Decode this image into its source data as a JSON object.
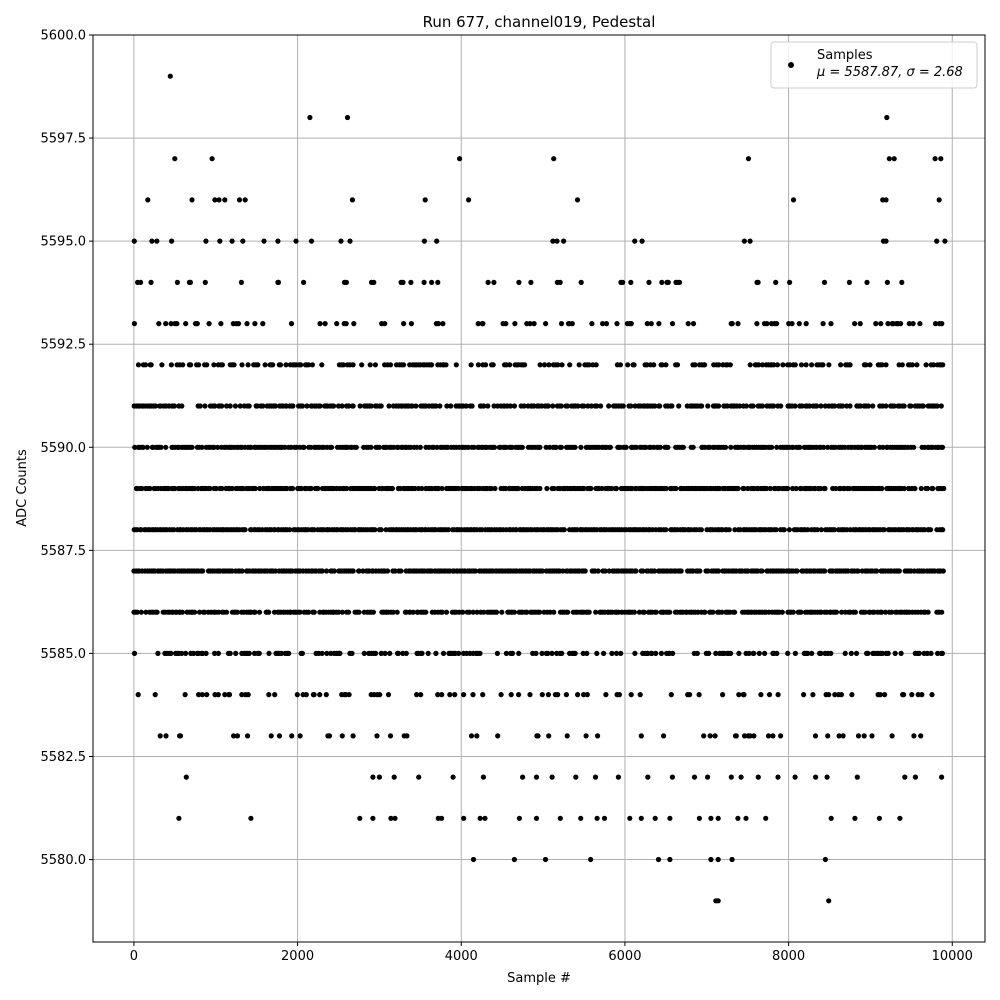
{
  "chart_data": {
    "type": "scatter",
    "title": "Run 677, channel019, Pedestal",
    "xlabel": "Sample #",
    "ylabel": "ADC Counts",
    "xlim": [
      -500,
      10400
    ],
    "ylim": [
      5578,
      5600
    ],
    "x_ticks": [
      0,
      2000,
      4000,
      6000,
      8000,
      10000
    ],
    "x_tick_labels": [
      "0",
      "2000",
      "4000",
      "6000",
      "8000",
      "10000"
    ],
    "y_ticks": [
      5580.0,
      5582.5,
      5585.0,
      5587.5,
      5590.0,
      5592.5,
      5595.0,
      5597.5,
      5600.0
    ],
    "y_tick_labels": [
      "5580.0",
      "5582.5",
      "5585.0",
      "5587.5",
      "5590.0",
      "5592.5",
      "5595.0",
      "5597.5",
      "5600.0"
    ],
    "grid": true,
    "legend": {
      "position": "top-right",
      "entry_label": "Samples",
      "stats_text": "μ = 5587.87, σ = 2.68"
    },
    "series": [
      {
        "name": "Samples",
        "color": "#000000",
        "points": [
          [
            444,
            5599
          ],
          [
            500,
            5597
          ],
          [
            955,
            5597
          ],
          [
            2150,
            5598
          ],
          [
            2610,
            5598
          ],
          [
            3980,
            5597
          ],
          [
            5130,
            5597
          ],
          [
            7510,
            5597
          ],
          [
            9200,
            5598
          ],
          [
            9230,
            5597
          ],
          [
            9290,
            5597
          ],
          [
            9790,
            5597
          ],
          [
            9860,
            5597
          ],
          [
            170,
            5596
          ],
          [
            710,
            5596
          ],
          [
            990,
            5596
          ],
          [
            1040,
            5596
          ],
          [
            1110,
            5596
          ],
          [
            1290,
            5596
          ],
          [
            1360,
            5596
          ],
          [
            2670,
            5596
          ],
          [
            3560,
            5596
          ],
          [
            4090,
            5596
          ],
          [
            5420,
            5596
          ],
          [
            8060,
            5596
          ],
          [
            9150,
            5596
          ],
          [
            9190,
            5596
          ],
          [
            9840,
            5596
          ],
          [
            5,
            5595
          ],
          [
            220,
            5595
          ],
          [
            280,
            5595
          ],
          [
            460,
            5595
          ],
          [
            880,
            5595
          ],
          [
            1050,
            5595
          ],
          [
            1200,
            5595
          ],
          [
            1330,
            5595
          ],
          [
            1590,
            5595
          ],
          [
            1760,
            5595
          ],
          [
            1980,
            5595
          ],
          [
            2170,
            5595
          ],
          [
            2530,
            5595
          ],
          [
            2640,
            5595
          ],
          [
            3550,
            5595
          ],
          [
            3700,
            5595
          ],
          [
            5120,
            5595
          ],
          [
            5170,
            5595
          ],
          [
            5250,
            5595
          ],
          [
            6120,
            5595
          ],
          [
            6210,
            5595
          ],
          [
            7460,
            5595
          ],
          [
            7530,
            5595
          ],
          [
            9160,
            5595
          ],
          [
            9190,
            5595
          ],
          [
            9810,
            5595
          ],
          [
            9910,
            5595
          ],
          [
            550,
            5581
          ],
          [
            1430,
            5581
          ],
          [
            2760,
            5581
          ],
          [
            2920,
            5581
          ],
          [
            3140,
            5581
          ],
          [
            3190,
            5581
          ],
          [
            3720,
            5581
          ],
          [
            3760,
            5581
          ],
          [
            4030,
            5581
          ],
          [
            4230,
            5581
          ],
          [
            4290,
            5581
          ],
          [
            4710,
            5581
          ],
          [
            4920,
            5581
          ],
          [
            5210,
            5581
          ],
          [
            5460,
            5581
          ],
          [
            5660,
            5581
          ],
          [
            5750,
            5581
          ],
          [
            6060,
            5581
          ],
          [
            6200,
            5581
          ],
          [
            6370,
            5581
          ],
          [
            6550,
            5581
          ],
          [
            6910,
            5581
          ],
          [
            7050,
            5581
          ],
          [
            7140,
            5581
          ],
          [
            7380,
            5581
          ],
          [
            7480,
            5581
          ],
          [
            7720,
            5581
          ],
          [
            8520,
            5581
          ],
          [
            8810,
            5581
          ],
          [
            9110,
            5581
          ],
          [
            9360,
            5581
          ],
          [
            640,
            5582
          ],
          [
            2920,
            5582
          ],
          [
            3000,
            5582
          ],
          [
            3180,
            5582
          ],
          [
            3480,
            5582
          ],
          [
            3900,
            5582
          ],
          [
            4270,
            5582
          ],
          [
            4750,
            5582
          ],
          [
            4920,
            5582
          ],
          [
            5110,
            5582
          ],
          [
            5400,
            5582
          ],
          [
            5640,
            5582
          ],
          [
            5920,
            5582
          ],
          [
            6280,
            5582
          ],
          [
            6580,
            5582
          ],
          [
            6850,
            5582
          ],
          [
            7010,
            5582
          ],
          [
            7300,
            5582
          ],
          [
            7420,
            5582
          ],
          [
            7630,
            5582
          ],
          [
            7870,
            5582
          ],
          [
            8080,
            5582
          ],
          [
            8330,
            5582
          ],
          [
            8470,
            5582
          ],
          [
            8840,
            5582
          ],
          [
            9420,
            5582
          ],
          [
            9550,
            5582
          ],
          [
            9870,
            5582
          ],
          [
            4150,
            5580
          ],
          [
            4650,
            5580
          ],
          [
            5030,
            5580
          ],
          [
            5580,
            5580
          ],
          [
            6410,
            5580
          ],
          [
            6550,
            5580
          ],
          [
            7050,
            5580
          ],
          [
            7140,
            5580
          ],
          [
            7310,
            5580
          ],
          [
            8450,
            5580
          ],
          [
            7110,
            5579
          ],
          [
            7140,
            5579
          ],
          [
            8490,
            5579
          ]
        ],
        "band_levels": [
          5583,
          5584,
          5585,
          5586,
          5587,
          5588,
          5589,
          5590,
          5591,
          5592,
          5593,
          5594
        ],
        "band_x_range": [
          0,
          9900
        ]
      }
    ]
  }
}
